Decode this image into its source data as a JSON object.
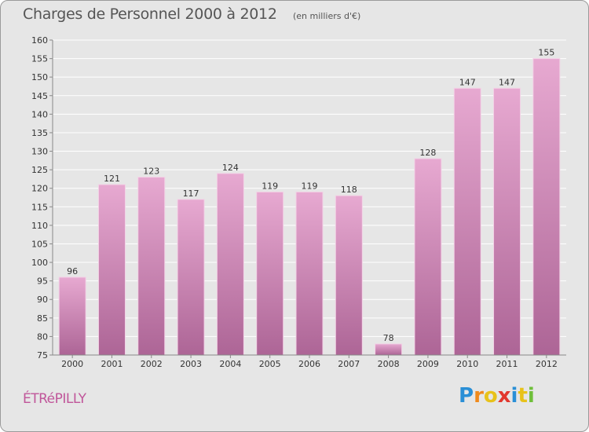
{
  "header": {
    "title": "Charges de Personnel 2000 à 2012",
    "subtitle": "(en milliers d'€)"
  },
  "footer": {
    "place": "ÉTRéPILLY",
    "logo_letters": [
      "P",
      "r",
      "o",
      "x",
      "i",
      "t",
      "i"
    ],
    "logo_colors": [
      "#2a8fd6",
      "#f08a1c",
      "#e8c21a",
      "#e2382e",
      "#2a8fd6",
      "#e8c21a",
      "#6fbf3a"
    ]
  },
  "colors": {
    "bar_top": "#e7a9d1",
    "bar_bottom": "#ad6596",
    "background": "#e6e6e6",
    "grid": "#ffffff",
    "axis": "#888888"
  },
  "chart_data": {
    "type": "bar",
    "categories": [
      "2000",
      "2001",
      "2002",
      "2003",
      "2004",
      "2005",
      "2006",
      "2007",
      "2008",
      "2009",
      "2010",
      "2011",
      "2012"
    ],
    "values": [
      96,
      121,
      123,
      117,
      124,
      119,
      119,
      118,
      78,
      128,
      147,
      147,
      155
    ],
    "ylim": [
      75,
      160
    ],
    "yticks": [
      75,
      80,
      85,
      90,
      95,
      100,
      105,
      110,
      115,
      120,
      125,
      130,
      135,
      140,
      145,
      150,
      155,
      160
    ],
    "grid": true,
    "xlabel": "",
    "ylabel": ""
  }
}
